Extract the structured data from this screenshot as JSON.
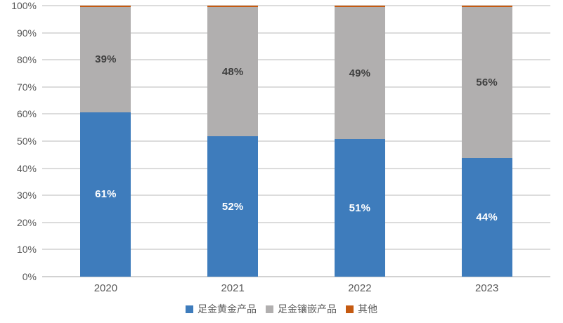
{
  "chart_data": {
    "type": "bar",
    "stacked": true,
    "percent_stacked": true,
    "title": "",
    "xlabel": "",
    "ylabel": "",
    "categories": [
      "2020",
      "2021",
      "2022",
      "2023"
    ],
    "series": [
      {
        "name": "足金黄金产品",
        "color": "#3E7CBC",
        "values": [
          61,
          52,
          51,
          44
        ],
        "labels": [
          "61%",
          "52%",
          "51%",
          "44%"
        ],
        "label_color": "#FFFFFF"
      },
      {
        "name": "足金镶嵌产品",
        "color": "#B1AFAF",
        "values": [
          39,
          48,
          49,
          56
        ],
        "labels": [
          "39%",
          "48%",
          "49%",
          "56%"
        ],
        "label_color": "#3F3F3F"
      },
      {
        "name": "其他",
        "color": "#C55A11",
        "values": [
          0.5,
          0.5,
          0.5,
          0.5
        ],
        "labels": [
          "",
          "",
          "",
          ""
        ],
        "label_color": "#3F3F3F"
      }
    ],
    "y_ticks": [
      "0%",
      "10%",
      "20%",
      "30%",
      "40%",
      "50%",
      "60%",
      "70%",
      "80%",
      "90%",
      "100%"
    ],
    "ylim": [
      0,
      100
    ],
    "grid": true,
    "gridline_color": "#DCDCDC",
    "axis_text_color": "#595959",
    "legend_position": "bottom",
    "background_color": "#FFFFFF"
  }
}
